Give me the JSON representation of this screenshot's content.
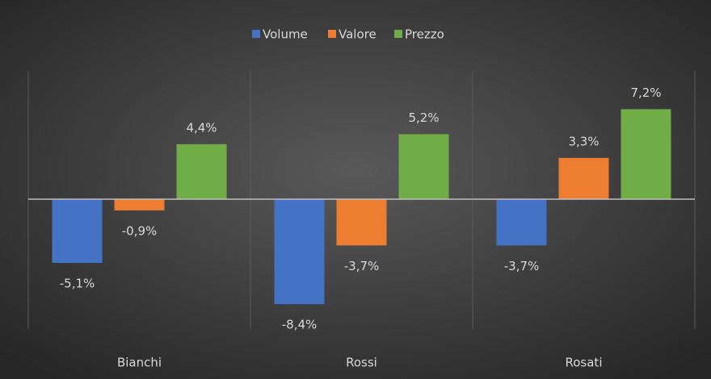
{
  "chart_data": {
    "type": "bar",
    "categories": [
      "Bianchi",
      "Rossi",
      "Rosati"
    ],
    "series": [
      {
        "name": "Volume",
        "color": "#4472c4",
        "values": [
          -5.1,
          -8.4,
          -3.7
        ],
        "value_labels": [
          "-5,1%",
          "-8,4%",
          "-3,7%"
        ]
      },
      {
        "name": "Valore",
        "color": "#ed7d31",
        "values": [
          -0.9,
          -3.7,
          3.3
        ],
        "value_labels": [
          "-0,9%",
          "-3,7%",
          "3,3%"
        ]
      },
      {
        "name": "Prezzo",
        "color": "#70ad47",
        "values": [
          4.4,
          5.2,
          7.2
        ],
        "value_labels": [
          "4,4%",
          "5,2%",
          "7,2%"
        ]
      }
    ],
    "ylim": [
      -10,
      10
    ],
    "legend": "top"
  }
}
